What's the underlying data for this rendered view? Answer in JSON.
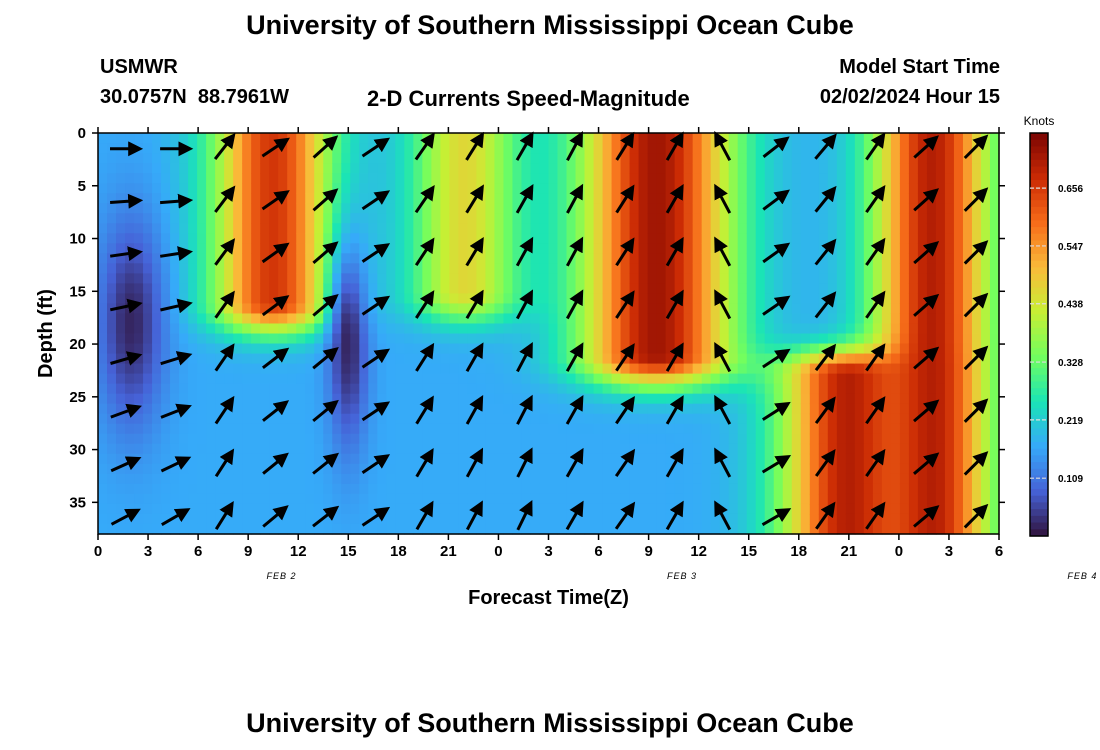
{
  "title": "University of Southern Mississippi Ocean Cube",
  "footer_title": "University of Southern Mississippi Ocean Cube",
  "station": {
    "id": "USMWR",
    "lat": "30.0757N",
    "lon": "88.7961W"
  },
  "subtitle": "2-D Currents Speed-Magnitude",
  "model": {
    "label": "Model Start Time",
    "value": "02/02/2024 Hour 15"
  },
  "chart_data": {
    "type": "heatmap",
    "title": "2-D Currents Speed-Magnitude",
    "xlabel": "Forecast Time(Z)",
    "ylabel": "Depth (ft)",
    "x_tick_labels": [
      "0",
      "3",
      "6",
      "9",
      "12",
      "15",
      "18",
      "21",
      "0",
      "3",
      "6",
      "9",
      "12",
      "15",
      "18",
      "21",
      "0",
      "3",
      "6"
    ],
    "x_range_hours": [
      0,
      54
    ],
    "day_labels": [
      {
        "label": "FEB 2",
        "hour": 11
      },
      {
        "label": "FEB 3",
        "hour": 35
      },
      {
        "label": "FEB 4",
        "hour": 59
      }
    ],
    "y_ticks": [
      0,
      5,
      10,
      15,
      20,
      25,
      30,
      35
    ],
    "ylim": [
      0,
      38
    ],
    "y_inverted": true,
    "colorbar": {
      "label": "Knots",
      "ticks": [
        "0.109",
        "0.219",
        "0.328",
        "0.438",
        "0.547",
        "0.656"
      ],
      "tick_values": [
        0.109,
        0.219,
        0.328,
        0.438,
        0.547,
        0.656
      ],
      "range": [
        0.0,
        0.76
      ],
      "colormap": [
        "#30123b",
        "#4662d7",
        "#36aaf9",
        "#1ae4b6",
        "#72fe5e",
        "#c7ef34",
        "#faba39",
        "#f66b19",
        "#ca2a04",
        "#7a0403"
      ]
    },
    "speed_features": [
      {
        "hour_center": 10.5,
        "hour_width": 3.5,
        "depth_max": 16,
        "peak": 0.66
      },
      {
        "hour_center": 22.0,
        "hour_width": 3.2,
        "depth_max": 15,
        "peak": 0.46
      },
      {
        "hour_center": 33.5,
        "hour_width": 4.5,
        "depth_max": 21,
        "peak": 0.72
      },
      {
        "hour_center": 50.0,
        "hour_width": 3.5,
        "depth_max": 38,
        "peak": 0.7
      },
      {
        "hour_center": 45.0,
        "hour_width": 4.0,
        "depth_min": 23,
        "depth_max": 38,
        "peak": 0.7
      },
      {
        "hour_center": 2.0,
        "hour_width": 2.0,
        "depth_center": 18,
        "depth_width": 10,
        "peak": 0.02
      },
      {
        "hour_center": 15.0,
        "hour_width": 1.2,
        "depth_center": 20,
        "depth_width": 10,
        "peak": 0.02
      }
    ],
    "vectors": [
      [
        0,
        -28
      ],
      [
        0,
        -30
      ],
      [
        -52,
        -58
      ],
      [
        -34,
        -40
      ],
      [
        -42,
        -38
      ],
      [
        -34,
        -34
      ],
      [
        -55,
        -60
      ],
      [
        -58,
        -62
      ],
      [
        -60,
        -64
      ],
      [
        -62,
        -60
      ],
      [
        -58,
        -55
      ],
      [
        -60,
        -60
      ],
      [
        -118,
        -118
      ],
      [
        -38,
        -30
      ],
      [
        -50,
        -55
      ],
      [
        -55,
        -55
      ],
      [
        -42,
        -40
      ],
      [
        -45,
        -45
      ]
    ]
  }
}
